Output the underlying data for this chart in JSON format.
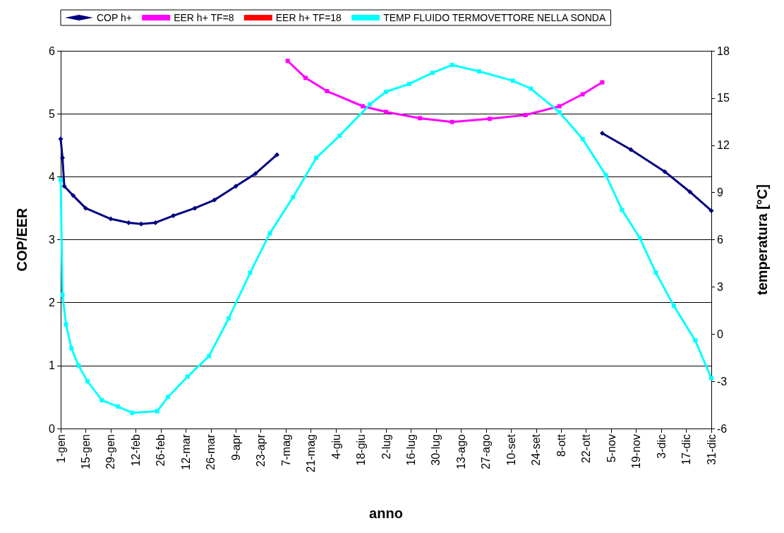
{
  "chart_data": {
    "type": "line",
    "xlabel": "anno",
    "ylabel": "COP/EER",
    "y2label": "temperatura [°C]",
    "xlim": [
      "--01-01",
      "--12-31"
    ],
    "xticks": [
      {
        "value": "--01-01",
        "label": "1-gen"
      },
      {
        "value": "--01-15",
        "label": "15-gen"
      },
      {
        "value": "--01-29",
        "label": "29-gen"
      },
      {
        "value": "--02-12",
        "label": "12-feb"
      },
      {
        "value": "--02-26",
        "label": "26-feb"
      },
      {
        "value": "--03-12",
        "label": "12-mar"
      },
      {
        "value": "--03-26",
        "label": "26-mar"
      },
      {
        "value": "--04-09",
        "label": "9-apr"
      },
      {
        "value": "--04-23",
        "label": "23-apr"
      },
      {
        "value": "--05-07",
        "label": "7-mag"
      },
      {
        "value": "--05-21",
        "label": "21-mag"
      },
      {
        "value": "--06-04",
        "label": "4-giu"
      },
      {
        "value": "--06-18",
        "label": "18-giu"
      },
      {
        "value": "--07-02",
        "label": "2-lug"
      },
      {
        "value": "--07-16",
        "label": "16-lug"
      },
      {
        "value": "--07-30",
        "label": "30-lug"
      },
      {
        "value": "--08-13",
        "label": "13-ago"
      },
      {
        "value": "--08-27",
        "label": "27-ago"
      },
      {
        "value": "--09-10",
        "label": "10-set"
      },
      {
        "value": "--09-24",
        "label": "24-set"
      },
      {
        "value": "--10-08",
        "label": "8-ott"
      },
      {
        "value": "--10-22",
        "label": "22-ott"
      },
      {
        "value": "--11-05",
        "label": "5-nov"
      },
      {
        "value": "--11-19",
        "label": "19-nov"
      },
      {
        "value": "--12-03",
        "label": "3-dic"
      },
      {
        "value": "--12-17",
        "label": "17-dic"
      },
      {
        "value": "--12-31",
        "label": "31-dic"
      }
    ],
    "ylim": [
      0,
      6
    ],
    "yticks": [
      0,
      1,
      2,
      3,
      4,
      5,
      6
    ],
    "y2lim": [
      -6,
      18
    ],
    "y2ticks": [
      -6,
      -3,
      0,
      3,
      6,
      9,
      12,
      15,
      18
    ],
    "grid": "y",
    "legend": "top",
    "line_style": "solid",
    "series": [
      {
        "name": "COP h+",
        "color": "#000080",
        "marker": "diamond",
        "x": [
          "--01-01",
          "--01-02",
          "--01-03",
          "--01-08",
          "--01-15",
          "--01-29",
          "--02-08",
          "--02-15",
          "--02-23",
          "--03-05",
          "--03-17",
          "--03-28",
          "--04-09",
          "--04-20",
          "--05-02",
          "--07-01",
          "--10-31",
          "--11-16",
          "--12-05",
          "--12-19",
          "--12-31"
        ],
        "values": [
          4.6,
          4.3,
          3.85,
          3.7,
          3.5,
          3.33,
          3.27,
          3.25,
          3.27,
          3.38,
          3.5,
          3.63,
          3.85,
          4.05,
          4.35,
          null,
          4.69,
          4.43,
          4.08,
          3.76,
          3.46
        ]
      },
      {
        "name": "EER h+ TF=8",
        "color": "#ff00ff",
        "marker": "square",
        "x": [
          "--05-08",
          "--05-18",
          "--05-30",
          "--06-19",
          "--07-02",
          "--07-21",
          "--08-08",
          "--08-29",
          "--09-18",
          "--10-07",
          "--10-20",
          "--10-31"
        ],
        "values": [
          5.84,
          5.57,
          5.36,
          5.12,
          5.03,
          4.93,
          4.87,
          4.92,
          4.98,
          5.12,
          5.31,
          5.5
        ]
      },
      {
        "name": "EER h+ TF=18",
        "color": "#ff0000",
        "marker": "square"
      },
      {
        "name": "TEMP FLUIDO TERMOVETTORE NELLA SONDA",
        "color": "#00ffff",
        "marker": "square",
        "axis": "y2",
        "x": [
          "--01-01",
          "--01-02",
          "--01-04",
          "--01-07",
          "--01-11",
          "--01-16",
          "--01-24",
          "--02-02",
          "--02-10",
          "--02-24",
          "--03-02",
          "--03-13",
          "--03-25",
          "--04-05",
          "--04-17",
          "--04-28",
          "--05-11",
          "--05-24",
          "--06-06",
          "--06-23",
          "--07-02",
          "--07-15",
          "--07-28",
          "--08-08",
          "--08-23",
          "--09-11",
          "--09-21",
          "--10-07",
          "--10-20",
          "--11-02",
          "--11-11",
          "--11-21",
          "--11-30",
          "--12-10",
          "--12-22",
          "--12-31"
        ],
        "values": [
          9.8,
          2.5,
          0.6,
          -0.9,
          -2.0,
          -3.0,
          -4.2,
          -4.6,
          -5.0,
          -4.9,
          -4.0,
          -2.7,
          -1.4,
          1.0,
          3.9,
          6.4,
          8.7,
          11.2,
          12.6,
          14.6,
          15.4,
          15.9,
          16.6,
          17.1,
          16.7,
          16.1,
          15.6,
          14.1,
          12.4,
          10.1,
          7.9,
          6.1,
          3.9,
          1.8,
          -0.4,
          -2.8
        ]
      }
    ]
  }
}
